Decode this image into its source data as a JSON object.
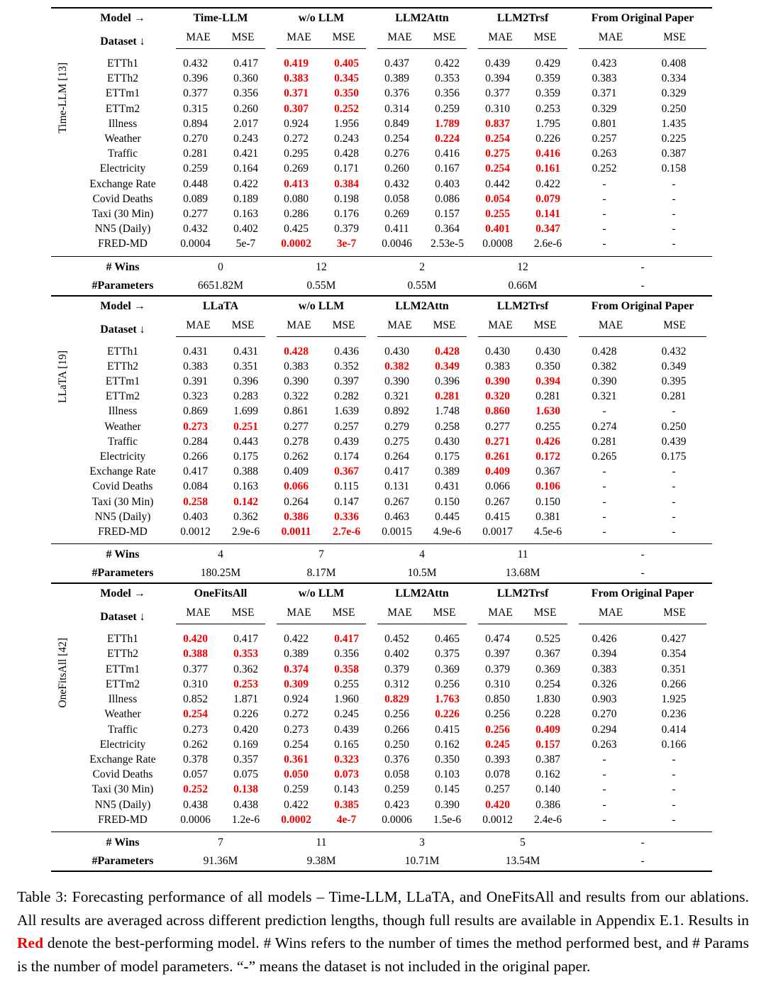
{
  "table": {
    "best_color": "#f20000",
    "header": {
      "model_arrow": "Model →",
      "dataset_arrow": "Dataset ↓",
      "mae": "MAE",
      "mse": "MSE"
    },
    "footer_labels": {
      "wins": "# Wins",
      "params": "#Parameters"
    },
    "sections": [
      {
        "group_label": "Time-LLM [13]",
        "models": [
          "Time-LLM",
          "w/o LLM",
          "LLM2Attn",
          "LLM2Trsf",
          "From Original Paper"
        ],
        "rows": [
          {
            "dataset": "ETTh1",
            "cells": [
              "0.432",
              "0.417",
              "!0.419",
              "!0.405",
              "0.437",
              "0.422",
              "0.439",
              "0.429",
              "0.423",
              "0.408"
            ]
          },
          {
            "dataset": "ETTh2",
            "cells": [
              "0.396",
              "0.360",
              "!0.383",
              "!0.345",
              "0.389",
              "0.353",
              "0.394",
              "0.359",
              "0.383",
              "0.334"
            ]
          },
          {
            "dataset": "ETTm1",
            "cells": [
              "0.377",
              "0.356",
              "!0.371",
              "!0.350",
              "0.376",
              "0.356",
              "0.377",
              "0.359",
              "0.371",
              "0.329"
            ]
          },
          {
            "dataset": "ETTm2",
            "cells": [
              "0.315",
              "0.260",
              "!0.307",
              "!0.252",
              "0.314",
              "0.259",
              "0.310",
              "0.253",
              "0.329",
              "0.250"
            ]
          },
          {
            "dataset": "Illness",
            "cells": [
              "0.894",
              "2.017",
              "0.924",
              "1.956",
              "0.849",
              "!1.789",
              "!0.837",
              "1.795",
              "0.801",
              "1.435"
            ]
          },
          {
            "dataset": "Weather",
            "cells": [
              "0.270",
              "0.243",
              "0.272",
              "0.243",
              "0.254",
              "!0.224",
              "!0.254",
              "0.226",
              "0.257",
              "0.225"
            ]
          },
          {
            "dataset": "Traffic",
            "cells": [
              "0.281",
              "0.421",
              "0.295",
              "0.428",
              "0.276",
              "0.416",
              "!0.275",
              "!0.416",
              "0.263",
              "0.387"
            ]
          },
          {
            "dataset": "Electricity",
            "cells": [
              "0.259",
              "0.164",
              "0.269",
              "0.171",
              "0.260",
              "0.167",
              "!0.254",
              "!0.161",
              "0.252",
              "0.158"
            ]
          },
          {
            "dataset": "Exchange Rate",
            "cells": [
              "0.448",
              "0.422",
              "!0.413",
              "!0.384",
              "0.432",
              "0.403",
              "0.442",
              "0.422",
              "-",
              "-"
            ]
          },
          {
            "dataset": "Covid Deaths",
            "cells": [
              "0.089",
              "0.189",
              "0.080",
              "0.198",
              "0.058",
              "0.086",
              "!0.054",
              "!0.079",
              "-",
              "-"
            ]
          },
          {
            "dataset": "Taxi (30 Min)",
            "cells": [
              "0.277",
              "0.163",
              "0.286",
              "0.176",
              "0.269",
              "0.157",
              "!0.255",
              "!0.141",
              "-",
              "-"
            ]
          },
          {
            "dataset": "NN5 (Daily)",
            "cells": [
              "0.432",
              "0.402",
              "0.425",
              "0.379",
              "0.411",
              "0.364",
              "!0.401",
              "!0.347",
              "-",
              "-"
            ]
          },
          {
            "dataset": "FRED-MD",
            "cells": [
              "0.0004",
              "5e-7",
              "!0.0002",
              "!3e-7",
              "0.0046",
              "2.53e-5",
              "0.0008",
              "2.6e-6",
              "-",
              "-"
            ]
          }
        ],
        "wins": [
          "0",
          "12",
          "2",
          "12",
          "-"
        ],
        "params": [
          "6651.82M",
          "0.55M",
          "0.55M",
          "0.66M",
          "-"
        ]
      },
      {
        "group_label": "LLaTA [19]",
        "models": [
          "LLaTA",
          "w/o LLM",
          "LLM2Attn",
          "LLM2Trsf",
          "From Original Paper"
        ],
        "rows": [
          {
            "dataset": "ETTh1",
            "cells": [
              "0.431",
              "0.431",
              "!0.428",
              "0.436",
              "0.430",
              "!0.428",
              "0.430",
              "0.430",
              "0.428",
              "0.432"
            ]
          },
          {
            "dataset": "ETTh2",
            "cells": [
              "0.383",
              "0.351",
              "0.383",
              "0.352",
              "!0.382",
              "!0.349",
              "0.383",
              "0.350",
              "0.382",
              "0.349"
            ]
          },
          {
            "dataset": "ETTm1",
            "cells": [
              "0.391",
              "0.396",
              "0.390",
              "0.397",
              "0.390",
              "0.396",
              "!0.390",
              "!0.394",
              "0.390",
              "0.395"
            ]
          },
          {
            "dataset": "ETTm2",
            "cells": [
              "0.323",
              "0.283",
              "0.322",
              "0.282",
              "0.321",
              "!0.281",
              "!0.320",
              "0.281",
              "0.321",
              "0.281"
            ]
          },
          {
            "dataset": "Illness",
            "cells": [
              "0.869",
              "1.699",
              "0.861",
              "1.639",
              "0.892",
              "1.748",
              "!0.860",
              "!1.630",
              "-",
              "-"
            ]
          },
          {
            "dataset": "Weather",
            "cells": [
              "!0.273",
              "!0.251",
              "0.277",
              "0.257",
              "0.279",
              "0.258",
              "0.277",
              "0.255",
              "0.274",
              "0.250"
            ]
          },
          {
            "dataset": "Traffic",
            "cells": [
              "0.284",
              "0.443",
              "0.278",
              "0.439",
              "0.275",
              "0.430",
              "!0.271",
              "!0.426",
              "0.281",
              "0.439"
            ]
          },
          {
            "dataset": "Electricity",
            "cells": [
              "0.266",
              "0.175",
              "0.262",
              "0.174",
              "0.264",
              "0.175",
              "!0.261",
              "!0.172",
              "0.265",
              "0.175"
            ]
          },
          {
            "dataset": "Exchange Rate",
            "cells": [
              "0.417",
              "0.388",
              "0.409",
              "!0.367",
              "0.417",
              "0.389",
              "!0.409",
              "0.367",
              "-",
              "-"
            ]
          },
          {
            "dataset": "Covid Deaths",
            "cells": [
              "0.084",
              "0.163",
              "!0.066",
              "0.115",
              "0.131",
              "0.431",
              "0.066",
              "!0.106",
              "-",
              "-"
            ]
          },
          {
            "dataset": "Taxi (30 Min)",
            "cells": [
              "!0.258",
              "!0.142",
              "0.264",
              "0.147",
              "0.267",
              "0.150",
              "0.267",
              "0.150",
              "-",
              "-"
            ]
          },
          {
            "dataset": "NN5 (Daily)",
            "cells": [
              "0.403",
              "0.362",
              "!0.386",
              "!0.336",
              "0.463",
              "0.445",
              "0.415",
              "0.381",
              "-",
              "-"
            ]
          },
          {
            "dataset": "FRED-MD",
            "cells": [
              "0.0012",
              "2.9e-6",
              "!0.0011",
              "!2.7e-6",
              "0.0015",
              "4.9e-6",
              "0.0017",
              "4.5e-6",
              "-",
              "-"
            ]
          }
        ],
        "wins": [
          "4",
          "7",
          "4",
          "11",
          "-"
        ],
        "params": [
          "180.25M",
          "8.17M",
          "10.5M",
          "13.68M",
          "-"
        ]
      },
      {
        "group_label": "OneFitsAll [42]",
        "models": [
          "OneFitsAll",
          "w/o LLM",
          "LLM2Attn",
          "LLM2Trsf",
          "From Original Paper"
        ],
        "rows": [
          {
            "dataset": "ETTh1",
            "cells": [
              "!0.420",
              "0.417",
              "0.422",
              "!0.417",
              "0.452",
              "0.465",
              "0.474",
              "0.525",
              "0.426",
              "0.427"
            ]
          },
          {
            "dataset": "ETTh2",
            "cells": [
              "!0.388",
              "!0.353",
              "0.389",
              "0.356",
              "0.402",
              "0.375",
              "0.397",
              "0.367",
              "0.394",
              "0.354"
            ]
          },
          {
            "dataset": "ETTm1",
            "cells": [
              "0.377",
              "0.362",
              "!0.374",
              "!0.358",
              "0.379",
              "0.369",
              "0.379",
              "0.369",
              "0.383",
              "0.351"
            ]
          },
          {
            "dataset": "ETTm2",
            "cells": [
              "0.310",
              "!0.253",
              "!0.309",
              "0.255",
              "0.312",
              "0.256",
              "0.310",
              "0.254",
              "0.326",
              "0.266"
            ]
          },
          {
            "dataset": "Illness",
            "cells": [
              "0.852",
              "1.871",
              "0.924",
              "1.960",
              "!0.829",
              "!1.763",
              "0.850",
              "1.830",
              "0.903",
              "1.925"
            ]
          },
          {
            "dataset": "Weather",
            "cells": [
              "!0.254",
              "0.226",
              "0.272",
              "0.245",
              "0.256",
              "!0.226",
              "0.256",
              "0.228",
              "0.270",
              "0.236"
            ]
          },
          {
            "dataset": "Traffic",
            "cells": [
              "0.273",
              "0.420",
              "0.273",
              "0.439",
              "0.266",
              "0.415",
              "!0.256",
              "!0.409",
              "0.294",
              "0.414"
            ]
          },
          {
            "dataset": "Electricity",
            "cells": [
              "0.262",
              "0.169",
              "0.254",
              "0.165",
              "0.250",
              "0.162",
              "!0.245",
              "!0.157",
              "0.263",
              "0.166"
            ]
          },
          {
            "dataset": "Exchange Rate",
            "cells": [
              "0.378",
              "0.357",
              "!0.361",
              "!0.323",
              "0.376",
              "0.350",
              "0.393",
              "0.387",
              "-",
              "-"
            ]
          },
          {
            "dataset": "Covid Deaths",
            "cells": [
              "0.057",
              "0.075",
              "!0.050",
              "!0.073",
              "0.058",
              "0.103",
              "0.078",
              "0.162",
              "-",
              "-"
            ]
          },
          {
            "dataset": "Taxi (30 Min)",
            "cells": [
              "!0.252",
              "!0.138",
              "0.259",
              "0.143",
              "0.259",
              "0.145",
              "0.257",
              "0.140",
              "-",
              "-"
            ]
          },
          {
            "dataset": "NN5 (Daily)",
            "cells": [
              "0.438",
              "0.438",
              "0.422",
              "!0.385",
              "0.423",
              "0.390",
              "!0.420",
              "0.386",
              "-",
              "-"
            ]
          },
          {
            "dataset": "FRED-MD",
            "cells": [
              "0.0006",
              "1.2e-6",
              "!0.0002",
              "!4e-7",
              "0.0006",
              "1.5e-6",
              "0.0012",
              "2.4e-6",
              "-",
              "-"
            ]
          }
        ],
        "wins": [
          "7",
          "11",
          "3",
          "5",
          "-"
        ],
        "params": [
          "91.36M",
          "9.38M",
          "10.71M",
          "13.54M",
          "-"
        ]
      }
    ]
  },
  "caption": {
    "before_red": "Table 3: Forecasting performance of all models – Time-LLM, LLaTA, and OneFitsAll and results from our ablations. All results are averaged across different prediction lengths, though full results are available in Appendix E.1. Results in ",
    "red_word": "Red",
    "after_red": " denote the best-performing model. # Wins refers to the number of times the method performed best, and # Params is the number of model parameters. “-” means the dataset is not included in the original paper."
  }
}
